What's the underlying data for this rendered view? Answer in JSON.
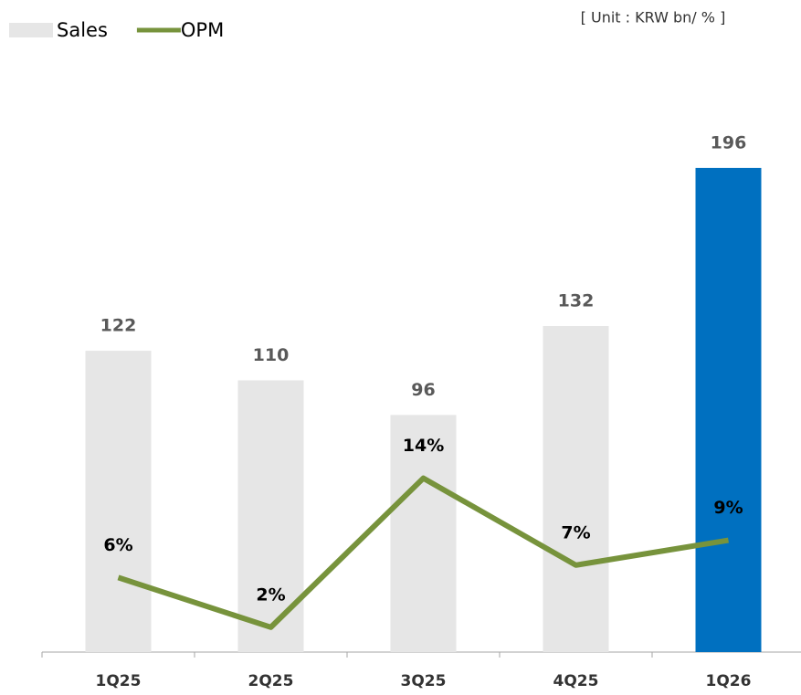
{
  "chart_data": {
    "type": "bar_line",
    "unit_note": "[ Unit : KRW bn/ % ]",
    "categories": [
      "1Q25",
      "2Q25",
      "3Q25",
      "4Q25",
      "1Q26"
    ],
    "series": [
      {
        "name": "Sales",
        "type": "bar",
        "color": "#e6e6e6",
        "colors": [
          "#e6e6e6",
          "#e6e6e6",
          "#e6e6e6",
          "#e6e6e6",
          "#0070c0"
        ],
        "values": [
          122,
          110,
          96,
          132,
          196
        ]
      },
      {
        "name": "OPM",
        "type": "line",
        "axis": "y2",
        "color": "#77933c",
        "values": [
          6,
          2,
          14,
          7,
          9
        ],
        "value_labels": [
          "6%",
          "2%",
          "14%",
          "7%",
          "9%"
        ]
      }
    ],
    "ylim": [
      0,
      264
    ],
    "y2lim": [
      0,
      52.5
    ],
    "legend": "top-left"
  }
}
